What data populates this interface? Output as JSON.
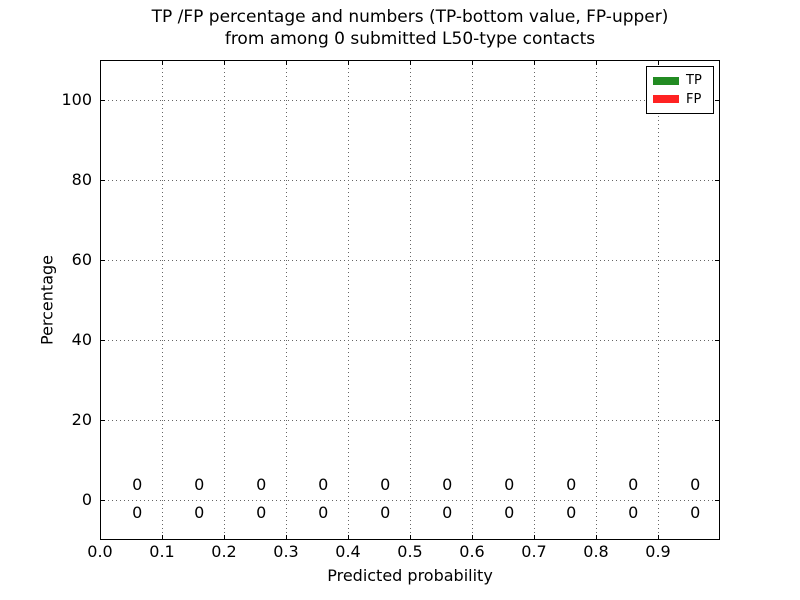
{
  "chart_data": {
    "type": "bar",
    "title_line1": "TP /FP percentage and numbers (TP-bottom value, FP-upper)",
    "title_line2": "from among 0 submitted L50-type contacts",
    "xlabel": "Predicted probability",
    "ylabel": "Percentage",
    "xlim": [
      0.0,
      1.0
    ],
    "ylim": [
      -10,
      110
    ],
    "x_ticks": [
      0.0,
      0.1,
      0.2,
      0.3,
      0.4,
      0.5,
      0.6,
      0.7,
      0.8,
      0.9
    ],
    "x_tick_labels": [
      "0.0",
      "0.1",
      "0.2",
      "0.3",
      "0.4",
      "0.5",
      "0.6",
      "0.7",
      "0.8",
      "0.9"
    ],
    "y_ticks": [
      0,
      20,
      40,
      60,
      80,
      100
    ],
    "y_tick_labels": [
      "0",
      "20",
      "40",
      "60",
      "80",
      "100"
    ],
    "grid": "dotted",
    "legend_position": "upper right",
    "label_x": [
      0.06,
      0.16,
      0.26,
      0.36,
      0.46,
      0.56,
      0.66,
      0.76,
      0.86,
      0.96
    ],
    "series": [
      {
        "name": "TP",
        "color": "#228b22",
        "values": [
          0,
          0,
          0,
          0,
          0,
          0,
          0,
          0,
          0,
          0
        ]
      },
      {
        "name": "FP",
        "color": "#ff2222",
        "values": [
          0,
          0,
          0,
          0,
          0,
          0,
          0,
          0,
          0,
          0
        ]
      }
    ],
    "value_labels": {
      "fp_upper_row": [
        "0",
        "0",
        "0",
        "0",
        "0",
        "0",
        "0",
        "0",
        "0",
        "0"
      ],
      "tp_lower_row": [
        "0",
        "0",
        "0",
        "0",
        "0",
        "0",
        "0",
        "0",
        "0",
        "0"
      ]
    }
  }
}
